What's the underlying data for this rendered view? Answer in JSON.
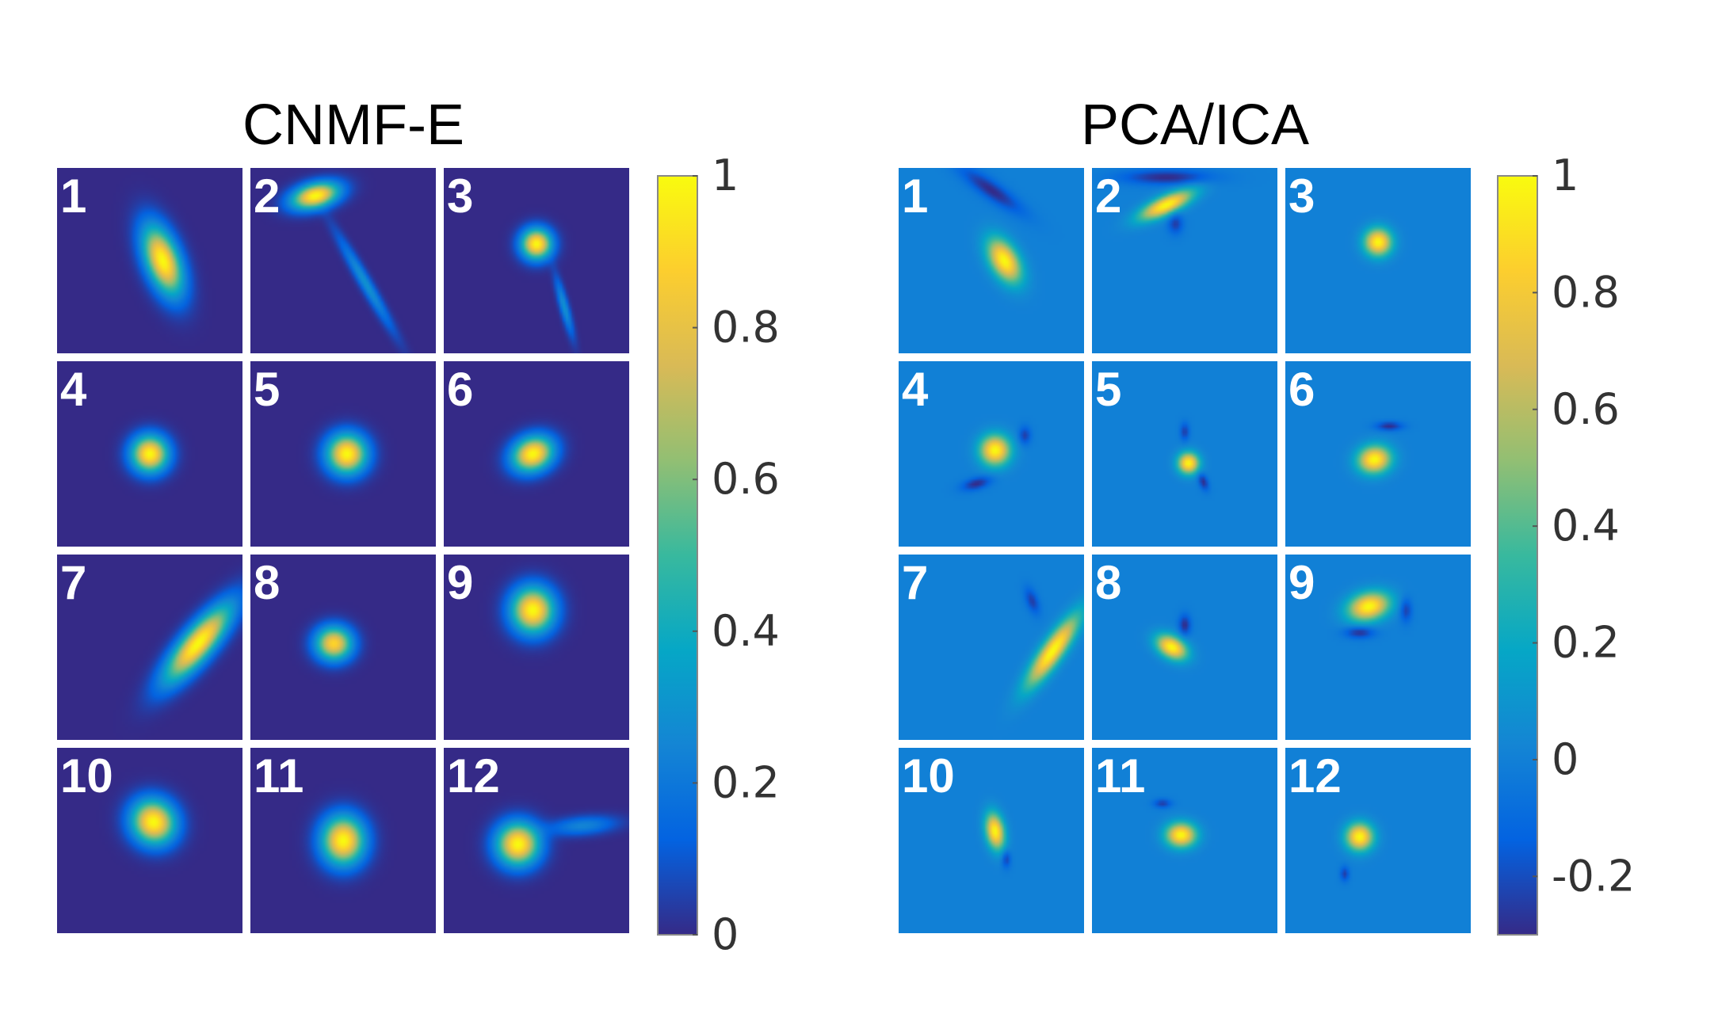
{
  "chart_data": [
    {
      "type": "heatmap",
      "title": "CNMF-E",
      "colorbar": {
        "min": 0,
        "max": 1,
        "ticks": [
          "0",
          "0.2",
          "0.4",
          "0.6",
          "0.8",
          "1"
        ]
      },
      "background_value": 0.0,
      "grid": {
        "rows": 4,
        "cols": 3
      },
      "tiles": [
        {
          "label": "1",
          "blobs": [
            {
              "cx": 0.57,
              "cy": 0.5,
              "rx": 0.11,
              "ry": 0.24,
              "angle": -20,
              "peak": 1.0
            }
          ]
        },
        {
          "label": "2",
          "blobs": [
            {
              "cx": 0.35,
              "cy": 0.15,
              "rx": 0.16,
              "ry": 0.08,
              "angle": -15,
              "peak": 1.0
            },
            {
              "cx": 0.62,
              "cy": 0.62,
              "rx": 0.04,
              "ry": 0.36,
              "angle": -30,
              "peak": 0.3
            }
          ]
        },
        {
          "label": "3",
          "blobs": [
            {
              "cx": 0.5,
              "cy": 0.41,
              "rx": 0.1,
              "ry": 0.1,
              "angle": 0,
              "peak": 1.0
            },
            {
              "cx": 0.65,
              "cy": 0.75,
              "rx": 0.03,
              "ry": 0.2,
              "angle": -15,
              "peak": 0.3
            }
          ]
        },
        {
          "label": "4",
          "blobs": [
            {
              "cx": 0.5,
              "cy": 0.5,
              "rx": 0.12,
              "ry": 0.12,
              "angle": 0,
              "peak": 1.0
            }
          ]
        },
        {
          "label": "5",
          "blobs": [
            {
              "cx": 0.52,
              "cy": 0.5,
              "rx": 0.13,
              "ry": 0.13,
              "angle": 0,
              "peak": 1.0
            }
          ]
        },
        {
          "label": "6",
          "blobs": [
            {
              "cx": 0.48,
              "cy": 0.5,
              "rx": 0.14,
              "ry": 0.11,
              "angle": -25,
              "peak": 1.0
            }
          ]
        },
        {
          "label": "7",
          "blobs": [
            {
              "cx": 0.76,
              "cy": 0.48,
              "rx": 0.1,
              "ry": 0.32,
              "angle": 40,
              "peak": 1.0
            }
          ]
        },
        {
          "label": "8",
          "blobs": [
            {
              "cx": 0.45,
              "cy": 0.48,
              "rx": 0.12,
              "ry": 0.11,
              "angle": 0,
              "peak": 0.9
            }
          ]
        },
        {
          "label": "9",
          "blobs": [
            {
              "cx": 0.48,
              "cy": 0.3,
              "rx": 0.14,
              "ry": 0.15,
              "angle": 0,
              "peak": 1.0
            }
          ]
        },
        {
          "label": "10",
          "blobs": [
            {
              "cx": 0.52,
              "cy": 0.4,
              "rx": 0.14,
              "ry": 0.15,
              "angle": -40,
              "peak": 1.0
            }
          ]
        },
        {
          "label": "11",
          "blobs": [
            {
              "cx": 0.5,
              "cy": 0.5,
              "rx": 0.14,
              "ry": 0.16,
              "angle": 0,
              "peak": 1.0
            }
          ]
        },
        {
          "label": "12",
          "blobs": [
            {
              "cx": 0.4,
              "cy": 0.52,
              "rx": 0.14,
              "ry": 0.14,
              "angle": 0,
              "peak": 1.0
            },
            {
              "cx": 0.75,
              "cy": 0.42,
              "rx": 0.22,
              "ry": 0.06,
              "angle": -5,
              "peak": 0.25
            }
          ]
        }
      ]
    },
    {
      "type": "heatmap",
      "title": "PCA/ICA",
      "colorbar": {
        "min": -0.3,
        "max": 1,
        "ticks": [
          "-0.2",
          "0",
          "0.2",
          "0.4",
          "0.6",
          "0.8",
          "1"
        ]
      },
      "background_value": 0.0,
      "grid": {
        "rows": 4,
        "cols": 3
      },
      "tiles": [
        {
          "label": "1",
          "blobs": [
            {
              "cx": 0.57,
              "cy": 0.5,
              "rx": 0.09,
              "ry": 0.16,
              "angle": -30,
              "peak": 1.0
            },
            {
              "cx": 0.5,
              "cy": 0.12,
              "rx": 0.25,
              "ry": 0.06,
              "angle": 35,
              "peak": -0.3
            }
          ]
        },
        {
          "label": "2",
          "blobs": [
            {
              "cx": 0.4,
              "cy": 0.2,
              "rx": 0.19,
              "ry": 0.06,
              "angle": -25,
              "peak": 1.0
            },
            {
              "cx": 0.4,
              "cy": 0.05,
              "rx": 0.3,
              "ry": 0.05,
              "angle": 0,
              "peak": -0.3
            },
            {
              "cx": 0.45,
              "cy": 0.3,
              "rx": 0.05,
              "ry": 0.07,
              "angle": 0,
              "peak": -0.25
            }
          ]
        },
        {
          "label": "3",
          "blobs": [
            {
              "cx": 0.5,
              "cy": 0.4,
              "rx": 0.09,
              "ry": 0.09,
              "angle": 0,
              "peak": 1.0
            }
          ]
        },
        {
          "label": "4",
          "blobs": [
            {
              "cx": 0.52,
              "cy": 0.48,
              "rx": 0.1,
              "ry": 0.1,
              "angle": 0,
              "peak": 1.0
            },
            {
              "cx": 0.42,
              "cy": 0.66,
              "rx": 0.1,
              "ry": 0.04,
              "angle": -15,
              "peak": -0.3
            },
            {
              "cx": 0.68,
              "cy": 0.4,
              "rx": 0.04,
              "ry": 0.06,
              "angle": 0,
              "peak": -0.25
            }
          ]
        },
        {
          "label": "5",
          "blobs": [
            {
              "cx": 0.52,
              "cy": 0.55,
              "rx": 0.07,
              "ry": 0.07,
              "angle": 0,
              "peak": 1.0
            },
            {
              "cx": 0.6,
              "cy": 0.65,
              "rx": 0.03,
              "ry": 0.06,
              "angle": -20,
              "peak": -0.3
            },
            {
              "cx": 0.5,
              "cy": 0.38,
              "rx": 0.03,
              "ry": 0.06,
              "angle": 0,
              "peak": -0.25
            }
          ]
        },
        {
          "label": "6",
          "blobs": [
            {
              "cx": 0.48,
              "cy": 0.53,
              "rx": 0.11,
              "ry": 0.09,
              "angle": -10,
              "peak": 1.0
            },
            {
              "cx": 0.56,
              "cy": 0.35,
              "rx": 0.09,
              "ry": 0.03,
              "angle": 0,
              "peak": -0.3
            }
          ]
        },
        {
          "label": "7",
          "blobs": [
            {
              "cx": 0.83,
              "cy": 0.52,
              "rx": 0.07,
              "ry": 0.28,
              "angle": 35,
              "peak": 1.0
            },
            {
              "cx": 0.72,
              "cy": 0.25,
              "rx": 0.04,
              "ry": 0.09,
              "angle": -20,
              "peak": -0.25
            }
          ]
        },
        {
          "label": "8",
          "blobs": [
            {
              "cx": 0.43,
              "cy": 0.5,
              "rx": 0.11,
              "ry": 0.07,
              "angle": 30,
              "peak": 1.0
            },
            {
              "cx": 0.5,
              "cy": 0.38,
              "rx": 0.04,
              "ry": 0.07,
              "angle": 0,
              "peak": -0.3
            }
          ]
        },
        {
          "label": "9",
          "blobs": [
            {
              "cx": 0.45,
              "cy": 0.28,
              "rx": 0.14,
              "ry": 0.09,
              "angle": -15,
              "peak": 1.0
            },
            {
              "cx": 0.4,
              "cy": 0.42,
              "rx": 0.1,
              "ry": 0.04,
              "angle": 0,
              "peak": -0.3
            },
            {
              "cx": 0.65,
              "cy": 0.3,
              "rx": 0.04,
              "ry": 0.08,
              "angle": 0,
              "peak": -0.25
            }
          ]
        },
        {
          "label": "10",
          "blobs": [
            {
              "cx": 0.52,
              "cy": 0.45,
              "rx": 0.06,
              "ry": 0.12,
              "angle": -10,
              "peak": 1.0
            },
            {
              "cx": 0.58,
              "cy": 0.6,
              "rx": 0.03,
              "ry": 0.06,
              "angle": 0,
              "peak": -0.25
            }
          ]
        },
        {
          "label": "11",
          "blobs": [
            {
              "cx": 0.48,
              "cy": 0.47,
              "rx": 0.1,
              "ry": 0.08,
              "angle": 0,
              "peak": 1.0
            },
            {
              "cx": 0.38,
              "cy": 0.3,
              "rx": 0.06,
              "ry": 0.03,
              "angle": 0,
              "peak": -0.25
            }
          ]
        },
        {
          "label": "12",
          "blobs": [
            {
              "cx": 0.4,
              "cy": 0.48,
              "rx": 0.09,
              "ry": 0.09,
              "angle": 0,
              "peak": 1.0
            },
            {
              "cx": 0.32,
              "cy": 0.68,
              "rx": 0.03,
              "ry": 0.05,
              "angle": 0,
              "peak": -0.25
            }
          ]
        }
      ]
    }
  ]
}
